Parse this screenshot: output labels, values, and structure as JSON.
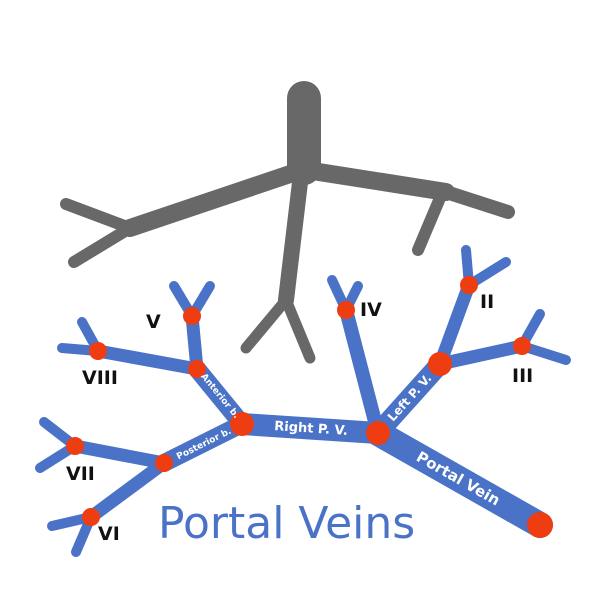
{
  "title": "Portal Veins",
  "vessel_labels": {
    "portal_vein": "Portal Vein",
    "right_pv": "Right P. V.",
    "left_pv": "Left P. V.",
    "anterior_b": "Anterior b.",
    "posterior_b": "Posterior b."
  },
  "segments": {
    "II": "II",
    "III": "III",
    "IV": "IV",
    "V": "V",
    "VI": "VI",
    "VII": "VII",
    "VIII": "VIII"
  },
  "colors": {
    "hepatic_veins": "#686868",
    "portal_veins": "#4a72c7",
    "segment_nodes": "#ee3d10",
    "title": "#4a72c7"
  }
}
